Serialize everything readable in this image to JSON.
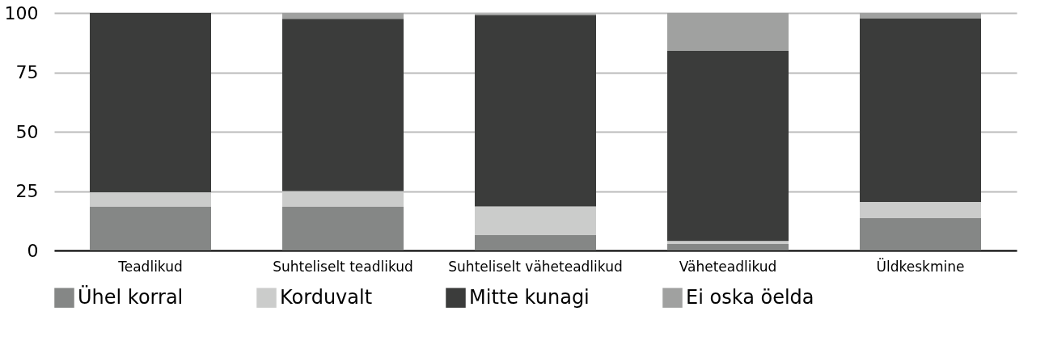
{
  "chart_data": {
    "type": "bar",
    "stacked": true,
    "categories": [
      "Teadlikud",
      "Suhteliselt teadlikud",
      "Suhteliselt väheteadlikud",
      "Väheteadlikud",
      "Üldkeskmine"
    ],
    "series": [
      {
        "name": "Ühel korral",
        "color": "#858786",
        "values": [
          18.5,
          18.5,
          6.5,
          2.7,
          13.6
        ]
      },
      {
        "name": "Korduvalt",
        "color": "#cbcccb",
        "values": [
          6,
          6.5,
          12,
          1.3,
          6.8
        ]
      },
      {
        "name": "Mitte kunagi",
        "color": "#3b3c3b",
        "values": [
          75.5,
          72.5,
          80.5,
          80,
          77.2
        ]
      },
      {
        "name": "Ei oska öelda",
        "color": "#a0a1a0",
        "values": [
          0,
          2.5,
          0.7,
          16,
          2.4
        ]
      }
    ],
    "ylim": [
      0,
      100
    ],
    "yticks": [
      0,
      25,
      50,
      75,
      100
    ],
    "grid": "y",
    "legend": "bottom"
  }
}
